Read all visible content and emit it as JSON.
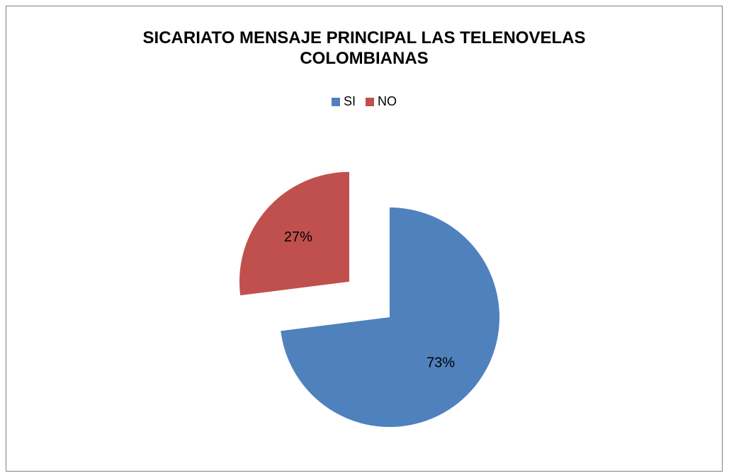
{
  "chart_data": {
    "type": "pie",
    "title_lines": [
      "SICARIATO MENSAJE PRINCIPAL LAS TELENOVELAS",
      "COLOMBIANAS"
    ],
    "categories": [
      "SI",
      "NO"
    ],
    "values": [
      73,
      27
    ],
    "labels": [
      "73%",
      "27%"
    ],
    "colors": [
      "#4f81bd",
      "#c0504d"
    ],
    "exploded": [
      "NO"
    ],
    "legend_position": "top"
  }
}
